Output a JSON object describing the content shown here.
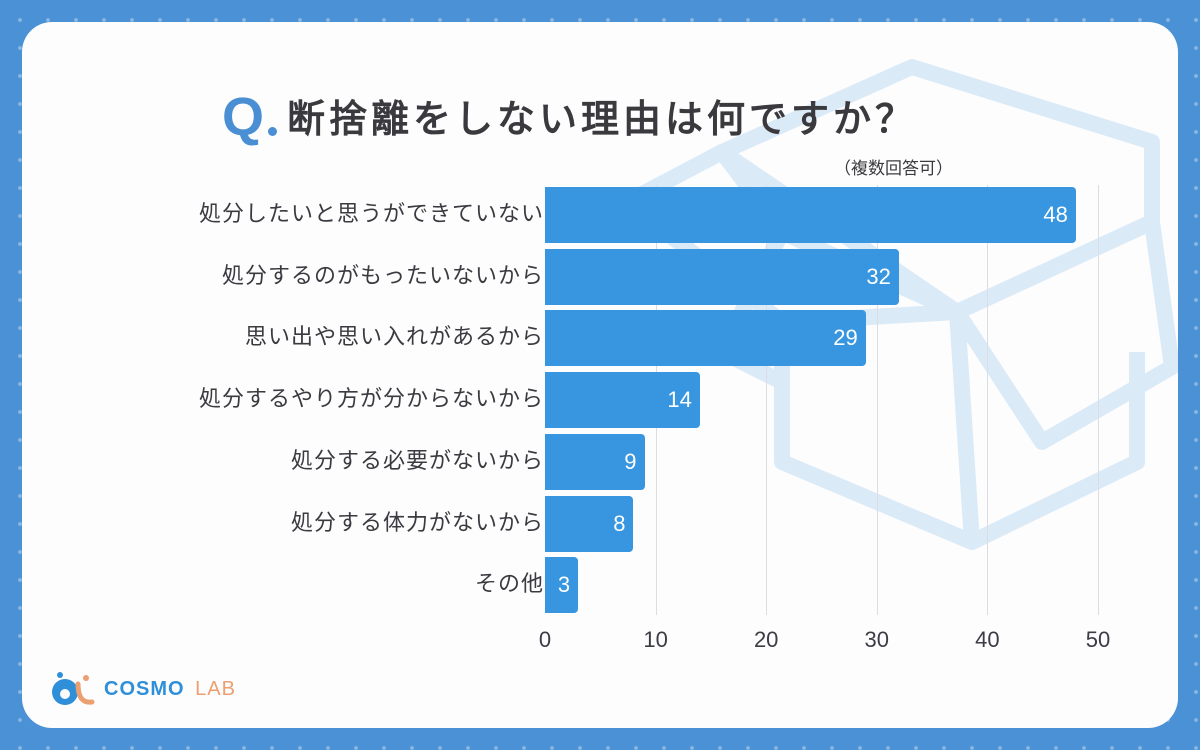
{
  "title": {
    "q_mark": "Q",
    "text": "断捨離をしない理由は何ですか？",
    "subtitle": "（複数回答可）"
  },
  "colors": {
    "frame": "#4b91d6",
    "bar": "#3796df",
    "accent": "#4a8fd4",
    "logo_primary": "#2f8fd8",
    "logo_secondary": "#ec9f70"
  },
  "logo": {
    "primary": "COSMO",
    "secondary": "LAB"
  },
  "chart_data": {
    "type": "bar",
    "orientation": "horizontal",
    "title": "断捨離をしない理由は何ですか？",
    "subtitle": "（複数回答可）",
    "categories": [
      "処分したいと思うができていない",
      "処分するのがもったいないから",
      "思い出や思い入れがあるから",
      "処分するやり方が分からないから",
      "処分する必要がないから",
      "処分する体力がないから",
      "その他"
    ],
    "values": [
      48,
      32,
      29,
      14,
      9,
      8,
      3
    ],
    "xlabel": "",
    "ylabel": "",
    "xlim": [
      0,
      50
    ],
    "xticks": [
      "0",
      "10",
      "20",
      "30",
      "40",
      "50"
    ],
    "grid": true,
    "data_labels": true,
    "legend": null
  }
}
